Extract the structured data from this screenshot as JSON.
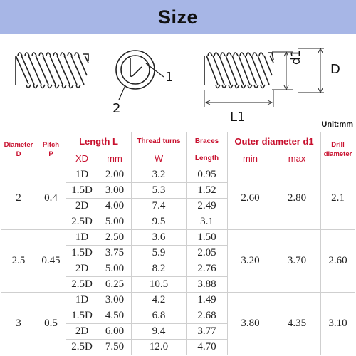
{
  "header": {
    "title": "Size"
  },
  "drawing": {
    "label_1": "1",
    "label_2": "2",
    "label_d1": "d1",
    "label_D": "D",
    "label_L1": "L1"
  },
  "unit_note": "Unit:mm",
  "table": {
    "headers": {
      "diameter": "Diameter",
      "diameter_sym": "D",
      "pitch": "Pitch",
      "pitch_sym": "P",
      "length": "Length  L",
      "xd": "XD",
      "mm": "mm",
      "thread_turns": "Thread turns",
      "w": "W",
      "braces": "Braces",
      "braces_length": "Length",
      "outer": "Outer diameter  d1",
      "min": "min",
      "max": "max",
      "drill": "Drill",
      "drill_diameter": "diameter"
    },
    "groups": [
      {
        "diameter": "2",
        "pitch": "0.4",
        "od_min": "2.60",
        "od_max": "2.80",
        "drill": "2.1",
        "rows": [
          {
            "xd": "1D",
            "mm": "2.00",
            "turns": "3.2",
            "brace": "0.95"
          },
          {
            "xd": "1.5D",
            "mm": "3.00",
            "turns": "5.3",
            "brace": "1.52"
          },
          {
            "xd": "2D",
            "mm": "4.00",
            "turns": "7.4",
            "brace": "2.49"
          },
          {
            "xd": "2.5D",
            "mm": "5.00",
            "turns": "9.5",
            "brace": "3.1"
          }
        ]
      },
      {
        "diameter": "2.5",
        "pitch": "0.45",
        "od_min": "3.20",
        "od_max": "3.70",
        "drill": "2.60",
        "rows": [
          {
            "xd": "1D",
            "mm": "2.50",
            "turns": "3.6",
            "brace": "1.50"
          },
          {
            "xd": "1.5D",
            "mm": "3.75",
            "turns": "5.9",
            "brace": "2.05"
          },
          {
            "xd": "2D",
            "mm": "5.00",
            "turns": "8.2",
            "brace": "2.76"
          },
          {
            "xd": "2.5D",
            "mm": "6.25",
            "turns": "10.5",
            "brace": "3.88"
          }
        ]
      },
      {
        "diameter": "3",
        "pitch": "0.5",
        "od_min": "3.80",
        "od_max": "4.35",
        "drill": "3.10",
        "rows": [
          {
            "xd": "1D",
            "mm": "3.00",
            "turns": "4.2",
            "brace": "1.49"
          },
          {
            "xd": "1.5D",
            "mm": "4.50",
            "turns": "6.8",
            "brace": "2.68"
          },
          {
            "xd": "2D",
            "mm": "6.00",
            "turns": "9.4",
            "brace": "3.77"
          },
          {
            "xd": "2.5D",
            "mm": "7.50",
            "turns": "12.0",
            "brace": "4.70"
          }
        ]
      }
    ]
  }
}
